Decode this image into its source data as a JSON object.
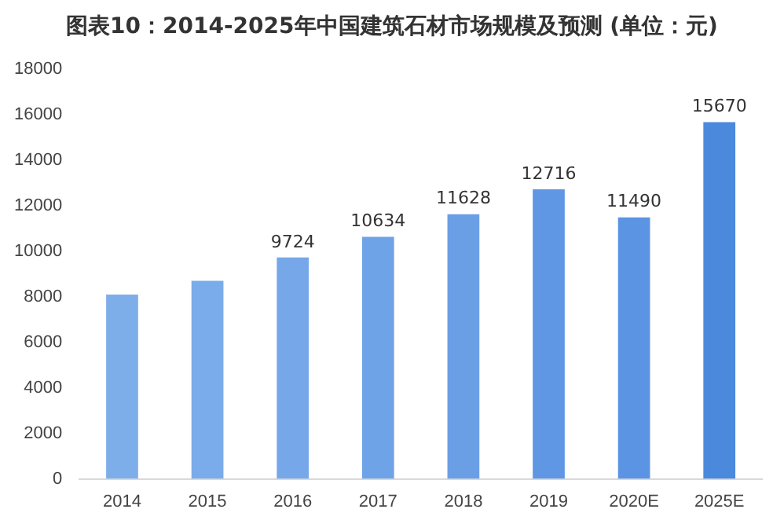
{
  "chart_data": {
    "type": "bar",
    "title": "图表10：2014-2025年中国建筑石材市场规模及预测 (单位：元)",
    "categories": [
      "2014",
      "2015",
      "2016",
      "2017",
      "2018",
      "2019",
      "2020E",
      "2025E"
    ],
    "values": [
      8100,
      8700,
      9724,
      10634,
      11628,
      12716,
      11490,
      15670
    ],
    "value_labels": [
      null,
      null,
      "9724",
      "10634",
      "11628",
      "12716",
      "11490",
      "15670"
    ],
    "colors": [
      "#7eaeea",
      "#7aabea",
      "#76a8e9",
      "#6fa3e8",
      "#6a9fe6",
      "#5f97e4",
      "#5b94e3",
      "#4a89dc"
    ],
    "ylim": [
      0,
      18000
    ],
    "yticks": [
      0,
      2000,
      4000,
      6000,
      8000,
      10000,
      12000,
      14000,
      16000,
      18000
    ],
    "grid": false,
    "legend": false
  }
}
